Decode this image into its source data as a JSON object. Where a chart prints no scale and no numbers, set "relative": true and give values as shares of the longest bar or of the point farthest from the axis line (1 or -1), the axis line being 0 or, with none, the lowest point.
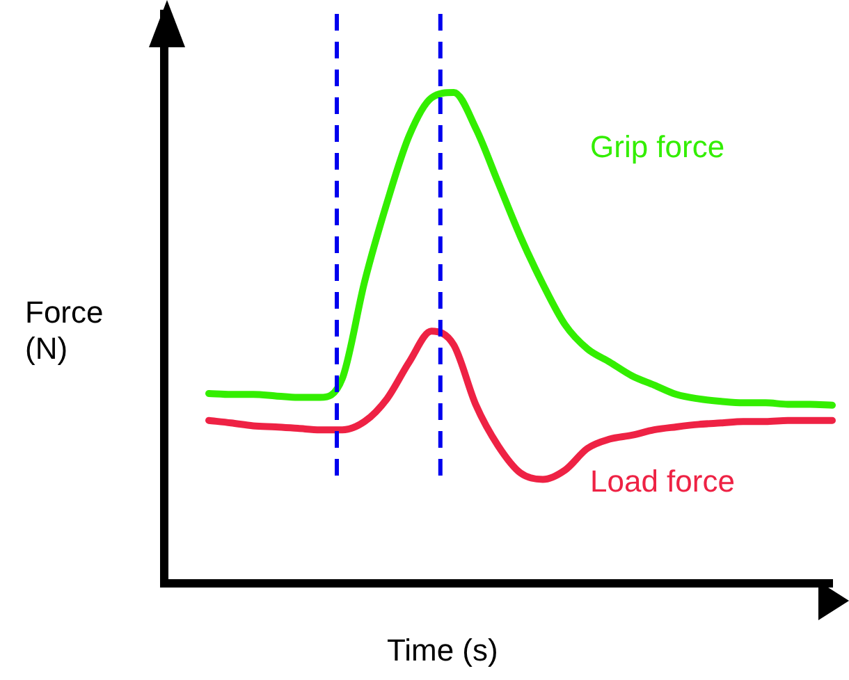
{
  "chart_data": {
    "type": "line",
    "relative": true,
    "xlabel": "Time (s)",
    "ylabel": "Force\n(N)",
    "categories": [
      null,
      null,
      null,
      null,
      null,
      null,
      null,
      null,
      null,
      null,
      null,
      null,
      null,
      null,
      null,
      null,
      null,
      null,
      null,
      null,
      null,
      null,
      null,
      null,
      null,
      null,
      null,
      null,
      null,
      null,
      null
    ],
    "series": [
      {
        "name": "Grip force",
        "color": "#33ee00",
        "values": [
          null,
          null,
          0.387,
          0.385,
          0.385,
          0.382,
          0.379,
          0.379,
          0.418,
          0.615,
          0.775,
          0.912,
          0.989,
          1,
          0.926,
          0.816,
          0.706,
          0.61,
          0.527,
          0.478,
          0.451,
          0.423,
          0.404,
          0.385,
          0.376,
          0.371,
          0.368,
          0.368,
          0.365,
          0.365,
          0.363
        ]
      },
      {
        "name": "Load force",
        "color": "#ee2244",
        "values": [
          null,
          null,
          0.332,
          0.327,
          0.321,
          0.319,
          0.316,
          0.313,
          0.313,
          0.33,
          0.376,
          0.451,
          0.514,
          0.486,
          0.363,
          0.28,
          0.225,
          0.212,
          0.231,
          0.275,
          0.294,
          0.302,
          0.313,
          0.319,
          0.324,
          0.327,
          0.33,
          0.33,
          0.332,
          0.332,
          0.332
        ]
      }
    ],
    "grid": false,
    "legend": false,
    "marker": "none",
    "line_style": "solid"
  }
}
